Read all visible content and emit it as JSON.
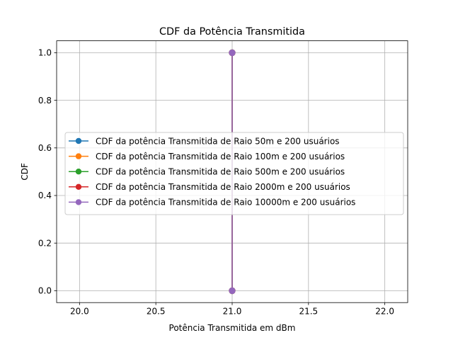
{
  "chart_data": {
    "type": "line",
    "title": "CDF da Potência Transmitida",
    "xlabel": "Potência Transmitida em dBm",
    "ylabel": "CDF",
    "xlim": [
      19.85,
      22.15
    ],
    "ylim": [
      -0.05,
      1.05
    ],
    "xticks": [
      20.0,
      20.5,
      21.0,
      21.5,
      22.0
    ],
    "xtick_labels": [
      "20.0",
      "20.5",
      "21.0",
      "21.5",
      "22.0"
    ],
    "yticks": [
      0.0,
      0.2,
      0.4,
      0.6,
      0.8,
      1.0
    ],
    "ytick_labels": [
      "0.0",
      "0.2",
      "0.4",
      "0.6",
      "0.8",
      "1.0"
    ],
    "grid": true,
    "legend_position": "center-left",
    "series": [
      {
        "name": "CDF da potência Transmitida de Raio 50m e 200 usuários",
        "color": "#1f77b4",
        "marker": "circle",
        "x": [
          21.0,
          21.0
        ],
        "y": [
          0.0,
          1.0
        ]
      },
      {
        "name": "CDF da potência Transmitida de Raio 100m e 200 usuários",
        "color": "#ff7f0e",
        "marker": "circle",
        "x": [
          21.0,
          21.0
        ],
        "y": [
          0.0,
          1.0
        ]
      },
      {
        "name": "CDF da potência Transmitida de Raio 500m e 200 usuários",
        "color": "#2ca02c",
        "marker": "circle",
        "x": [
          21.0,
          21.0
        ],
        "y": [
          0.0,
          1.0
        ]
      },
      {
        "name": "CDF da potência Transmitida de Raio 2000m e 200 usuários",
        "color": "#d62728",
        "marker": "circle",
        "x": [
          21.0,
          21.0
        ],
        "y": [
          0.0,
          1.0
        ]
      },
      {
        "name": "CDF da potência Transmitida de Raio 10000m e 200 usuários",
        "color": "#9467bd",
        "marker": "circle",
        "x": [
          21.0,
          21.0
        ],
        "y": [
          0.0,
          1.0
        ]
      }
    ]
  }
}
